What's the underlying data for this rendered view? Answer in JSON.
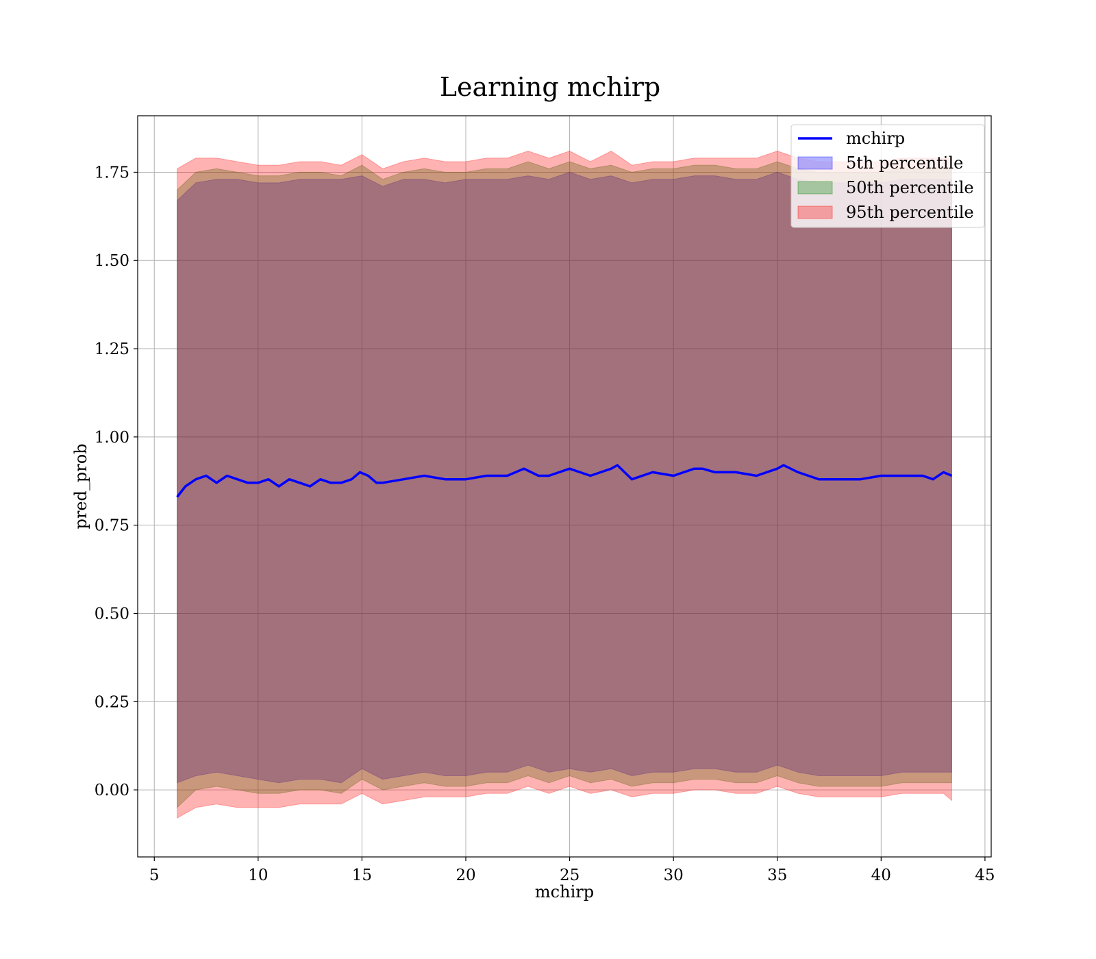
{
  "chart_data": {
    "type": "line",
    "title": "Learning mchirp",
    "xlabel": "mchirp",
    "ylabel": "pred_prob",
    "xlim": [
      4.2,
      45.3
    ],
    "ylim": [
      -0.19,
      1.91
    ],
    "x_ticks": [
      5,
      10,
      15,
      20,
      25,
      30,
      35,
      40,
      45
    ],
    "y_ticks": [
      0.0,
      0.25,
      0.5,
      0.75,
      1.0,
      1.25,
      1.5,
      1.75
    ],
    "y_tick_labels": [
      "0.00",
      "0.25",
      "0.50",
      "0.75",
      "1.00",
      "1.25",
      "1.50",
      "1.75"
    ],
    "grid": true,
    "legend_position": "top-right",
    "legend": [
      {
        "label": "mchirp",
        "kind": "line",
        "color": "#0000ff"
      },
      {
        "label": "5th percentile",
        "kind": "patch",
        "color": "#0000ff"
      },
      {
        "label": "50th percentile",
        "kind": "patch",
        "color": "#008000"
      },
      {
        "label": "95th percentile",
        "kind": "patch",
        "color": "#ff0000"
      }
    ],
    "series": [
      {
        "name": "mchirp",
        "type": "line",
        "color": "#0000ff",
        "x": [
          6.1,
          6.5,
          7.0,
          7.5,
          8.0,
          8.5,
          9.0,
          9.5,
          10.0,
          10.5,
          11.0,
          11.5,
          12.0,
          12.5,
          13.0,
          13.5,
          14.0,
          14.5,
          14.9,
          15.3,
          15.7,
          16.0,
          17.0,
          18.0,
          19.0,
          20.0,
          21.0,
          22.0,
          22.8,
          23.5,
          24.0,
          25.0,
          25.5,
          26.0,
          27.0,
          27.3,
          28.0,
          29.0,
          30.0,
          31.0,
          31.4,
          32.0,
          33.0,
          34.0,
          35.0,
          35.3,
          36.0,
          37.0,
          38.0,
          39.0,
          40.0,
          41.0,
          42.0,
          42.5,
          43.0,
          43.4
        ],
        "y": [
          0.83,
          0.86,
          0.88,
          0.89,
          0.87,
          0.89,
          0.88,
          0.87,
          0.87,
          0.88,
          0.86,
          0.88,
          0.87,
          0.86,
          0.88,
          0.87,
          0.87,
          0.88,
          0.9,
          0.89,
          0.87,
          0.87,
          0.88,
          0.89,
          0.88,
          0.88,
          0.89,
          0.89,
          0.91,
          0.89,
          0.89,
          0.91,
          0.9,
          0.89,
          0.91,
          0.92,
          0.88,
          0.9,
          0.89,
          0.91,
          0.91,
          0.9,
          0.9,
          0.89,
          0.91,
          0.92,
          0.9,
          0.88,
          0.88,
          0.88,
          0.89,
          0.89,
          0.89,
          0.88,
          0.9,
          0.89
        ]
      },
      {
        "name": "5th percentile",
        "type": "area",
        "color": "#0000ff",
        "x": [
          6.1,
          7.0,
          8.0,
          9.0,
          10.0,
          11.0,
          12.0,
          13.0,
          14.0,
          15.0,
          16.0,
          17.0,
          18.0,
          19.0,
          20.0,
          21.0,
          22.0,
          23.0,
          24.0,
          25.0,
          26.0,
          27.0,
          28.0,
          29.0,
          30.0,
          31.0,
          32.0,
          33.0,
          34.0,
          35.0,
          36.0,
          37.0,
          38.0,
          39.0,
          40.0,
          41.0,
          42.0,
          43.0,
          43.4
        ],
        "lower": [
          0.02,
          0.04,
          0.05,
          0.04,
          0.03,
          0.02,
          0.03,
          0.03,
          0.02,
          0.06,
          0.03,
          0.04,
          0.05,
          0.04,
          0.04,
          0.05,
          0.05,
          0.07,
          0.05,
          0.06,
          0.05,
          0.06,
          0.04,
          0.05,
          0.05,
          0.06,
          0.06,
          0.05,
          0.05,
          0.07,
          0.05,
          0.04,
          0.04,
          0.04,
          0.04,
          0.05,
          0.05,
          0.05,
          0.05
        ],
        "upper": [
          1.67,
          1.72,
          1.73,
          1.73,
          1.72,
          1.72,
          1.73,
          1.73,
          1.73,
          1.74,
          1.71,
          1.73,
          1.73,
          1.72,
          1.73,
          1.73,
          1.73,
          1.74,
          1.73,
          1.75,
          1.73,
          1.74,
          1.72,
          1.73,
          1.73,
          1.74,
          1.74,
          1.73,
          1.73,
          1.75,
          1.73,
          1.72,
          1.72,
          1.72,
          1.72,
          1.73,
          1.73,
          1.73,
          1.73
        ]
      },
      {
        "name": "50th percentile",
        "type": "area",
        "color": "#008000",
        "x": [
          6.1,
          7.0,
          8.0,
          9.0,
          10.0,
          11.0,
          12.0,
          13.0,
          14.0,
          15.0,
          16.0,
          17.0,
          18.0,
          19.0,
          20.0,
          21.0,
          22.0,
          23.0,
          24.0,
          25.0,
          26.0,
          27.0,
          28.0,
          29.0,
          30.0,
          31.0,
          32.0,
          33.0,
          34.0,
          35.0,
          36.0,
          37.0,
          38.0,
          39.0,
          40.0,
          41.0,
          42.0,
          43.0,
          43.4
        ],
        "lower": [
          -0.05,
          0.0,
          0.01,
          0.0,
          -0.01,
          -0.01,
          0.0,
          0.0,
          -0.01,
          0.03,
          0.0,
          0.01,
          0.02,
          0.01,
          0.01,
          0.02,
          0.02,
          0.04,
          0.02,
          0.04,
          0.02,
          0.03,
          0.01,
          0.02,
          0.02,
          0.03,
          0.03,
          0.02,
          0.02,
          0.04,
          0.02,
          0.01,
          0.01,
          0.01,
          0.01,
          0.02,
          0.02,
          0.02,
          0.02
        ],
        "upper": [
          1.7,
          1.75,
          1.76,
          1.75,
          1.74,
          1.74,
          1.75,
          1.75,
          1.74,
          1.77,
          1.73,
          1.75,
          1.76,
          1.75,
          1.75,
          1.76,
          1.76,
          1.78,
          1.76,
          1.78,
          1.76,
          1.77,
          1.75,
          1.76,
          1.76,
          1.77,
          1.77,
          1.76,
          1.76,
          1.78,
          1.76,
          1.75,
          1.75,
          1.75,
          1.75,
          1.76,
          1.76,
          1.76,
          1.76
        ]
      },
      {
        "name": "95th percentile",
        "type": "area",
        "color": "#ff0000",
        "x": [
          6.1,
          7.0,
          8.0,
          9.0,
          10.0,
          11.0,
          12.0,
          13.0,
          14.0,
          15.0,
          16.0,
          17.0,
          18.0,
          19.0,
          20.0,
          21.0,
          22.0,
          23.0,
          24.0,
          25.0,
          26.0,
          27.0,
          28.0,
          29.0,
          30.0,
          31.0,
          32.0,
          33.0,
          34.0,
          35.0,
          36.0,
          37.0,
          38.0,
          39.0,
          40.0,
          41.0,
          42.0,
          43.0,
          43.4
        ],
        "lower": [
          -0.08,
          -0.05,
          -0.04,
          -0.05,
          -0.05,
          -0.05,
          -0.04,
          -0.04,
          -0.04,
          -0.01,
          -0.04,
          -0.03,
          -0.02,
          -0.02,
          -0.02,
          -0.01,
          -0.01,
          0.01,
          -0.01,
          0.01,
          -0.01,
          0.0,
          -0.02,
          -0.01,
          -0.01,
          0.0,
          0.0,
          -0.01,
          -0.01,
          0.01,
          -0.01,
          -0.02,
          -0.02,
          -0.02,
          -0.02,
          -0.01,
          -0.01,
          -0.01,
          -0.03
        ],
        "upper": [
          1.76,
          1.79,
          1.79,
          1.78,
          1.77,
          1.77,
          1.78,
          1.78,
          1.77,
          1.8,
          1.76,
          1.78,
          1.79,
          1.78,
          1.78,
          1.79,
          1.79,
          1.81,
          1.79,
          1.81,
          1.78,
          1.81,
          1.77,
          1.78,
          1.78,
          1.79,
          1.79,
          1.79,
          1.79,
          1.81,
          1.79,
          1.78,
          1.78,
          1.78,
          1.78,
          1.79,
          1.79,
          1.79,
          1.79
        ]
      }
    ]
  }
}
